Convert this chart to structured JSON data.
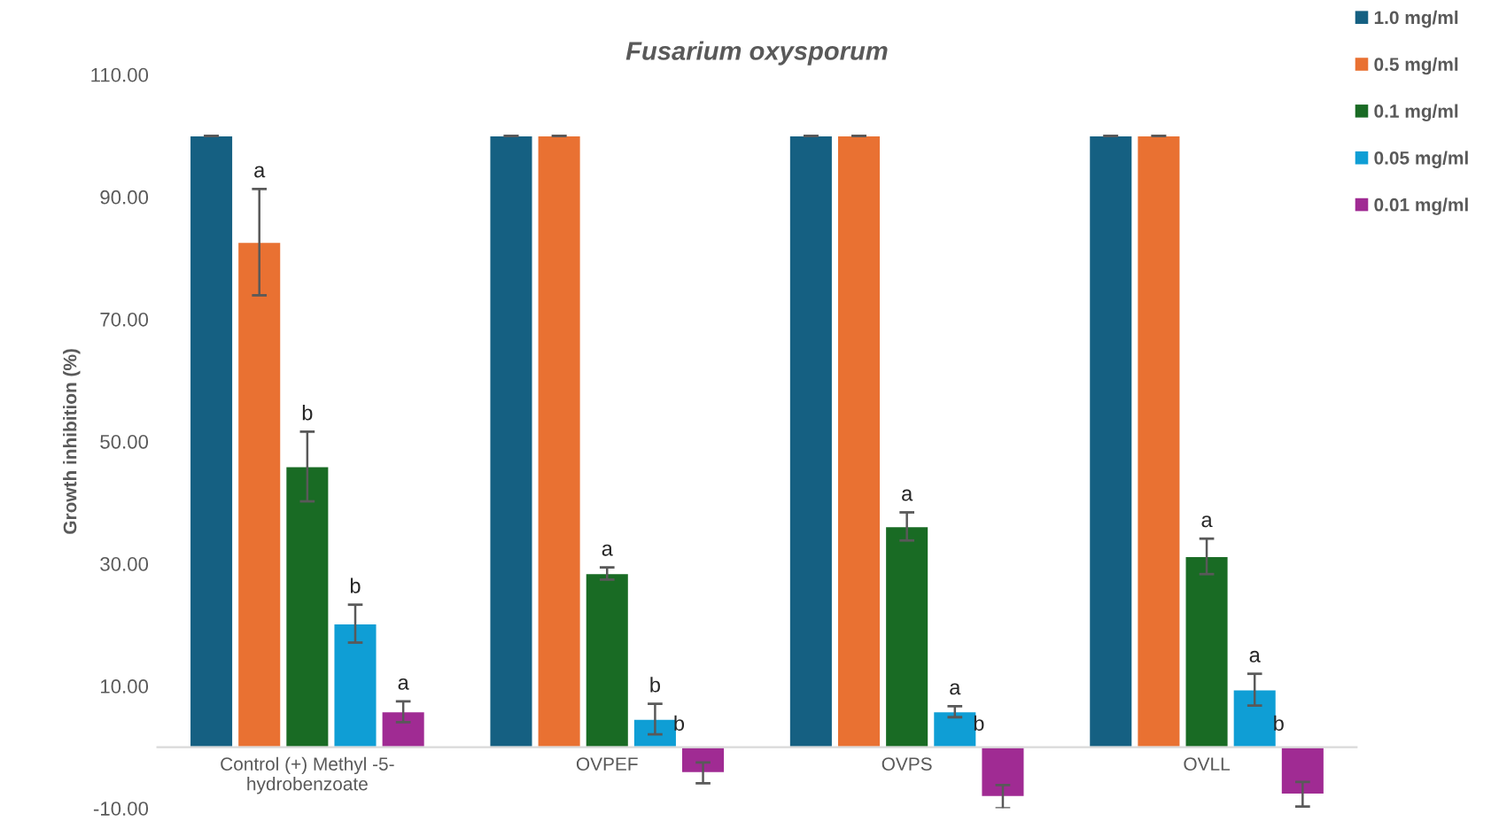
{
  "chart_data": {
    "type": "bar",
    "title": "Fusarium oxysporum",
    "ylabel": "Growth inhibition (%)",
    "categories": [
      "Control (+) Methyl -5-\nhydrobenzoate",
      "OVPEF",
      "OVPS",
      "OVLL"
    ],
    "series": [
      {
        "name": "1.0 mg/ml",
        "color": "#156082",
        "values": [
          100,
          100,
          100,
          100
        ],
        "errors": [
          0,
          0,
          0,
          0
        ]
      },
      {
        "name": "0.5 mg/ml",
        "color": "#e97132",
        "values": [
          82.6,
          100,
          100,
          100
        ],
        "errors": [
          8.7,
          0,
          0,
          0
        ],
        "value_labels": [
          "a",
          null,
          null,
          null
        ]
      },
      {
        "name": "0.1 mg/ml",
        "color": "#196b24",
        "values": [
          45.9,
          28.4,
          36.1,
          31.2
        ],
        "errors": [
          5.7,
          1.0,
          2.3,
          2.9
        ],
        "value_labels": [
          "b",
          "a",
          "a",
          "a"
        ]
      },
      {
        "name": "0.05 mg/ml",
        "color": "#0f9ed5",
        "values": [
          20.2,
          4.6,
          5.8,
          9.4
        ],
        "errors": [
          3.1,
          2.5,
          0.9,
          2.6
        ],
        "value_labels": [
          "b",
          "b",
          "a",
          "a"
        ]
      },
      {
        "name": "0.01 mg/ml",
        "color": "#a02b93",
        "values": [
          5.8,
          -4.2,
          -8.1,
          -7.7
        ],
        "errors": [
          1.7,
          1.7,
          1.9,
          2.0
        ],
        "value_labels": [
          "a",
          "b",
          "b",
          "b"
        ]
      }
    ],
    "ylim": [
      -10,
      110
    ],
    "yticks": [
      {
        "value": -10,
        "label": "-10.00"
      },
      {
        "value": 10,
        "label": "10.00"
      },
      {
        "value": 30,
        "label": "30.00"
      },
      {
        "value": 50,
        "label": "50.00"
      },
      {
        "value": 70,
        "label": "70.00"
      },
      {
        "value": 90,
        "label": "90.00"
      },
      {
        "value": 110,
        "label": "110.00"
      }
    ],
    "grid": false,
    "legend": "top right"
  }
}
